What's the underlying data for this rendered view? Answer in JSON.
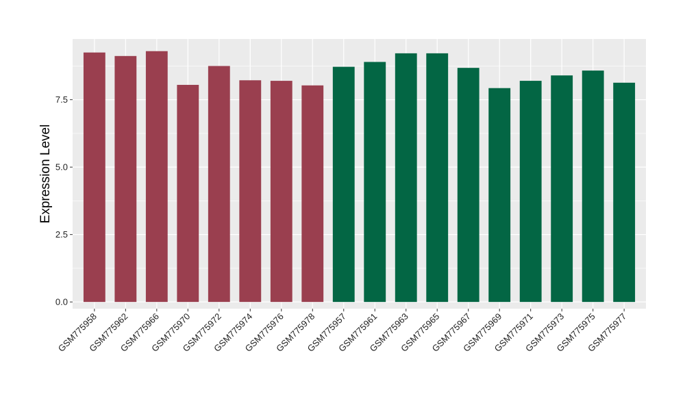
{
  "chart_data": {
    "type": "bar",
    "title": "",
    "xlabel": "",
    "ylabel": "Expression Level",
    "ylim": [
      -0.25,
      9.75
    ],
    "yticks": [
      0.0,
      2.5,
      5.0,
      7.5
    ],
    "ytick_labels": [
      "0.0",
      "2.5",
      "5.0",
      "7.5"
    ],
    "grid": true,
    "legend": "none",
    "panel_background": "#ebebeb",
    "gridline_color": "#ffffff",
    "categories": [
      "GSM775958",
      "GSM775962",
      "GSM775966",
      "GSM775970",
      "GSM775972",
      "GSM775974",
      "GSM775976",
      "GSM775978",
      "GSM775957",
      "GSM775961",
      "GSM775963",
      "GSM775965",
      "GSM775967",
      "GSM775969",
      "GSM775971",
      "GSM775973",
      "GSM775975",
      "GSM775977"
    ],
    "values": [
      9.25,
      9.12,
      9.3,
      8.05,
      8.75,
      8.22,
      8.2,
      8.03,
      8.72,
      8.9,
      9.22,
      9.22,
      8.68,
      7.93,
      8.2,
      8.4,
      8.58,
      8.13
    ],
    "bar_colors": [
      "#9a3f4f",
      "#9a3f4f",
      "#9a3f4f",
      "#9a3f4f",
      "#9a3f4f",
      "#9a3f4f",
      "#9a3f4f",
      "#9a3f4f",
      "#036644",
      "#036644",
      "#036644",
      "#036644",
      "#036644",
      "#036644",
      "#036644",
      "#036644",
      "#036644",
      "#036644"
    ]
  }
}
